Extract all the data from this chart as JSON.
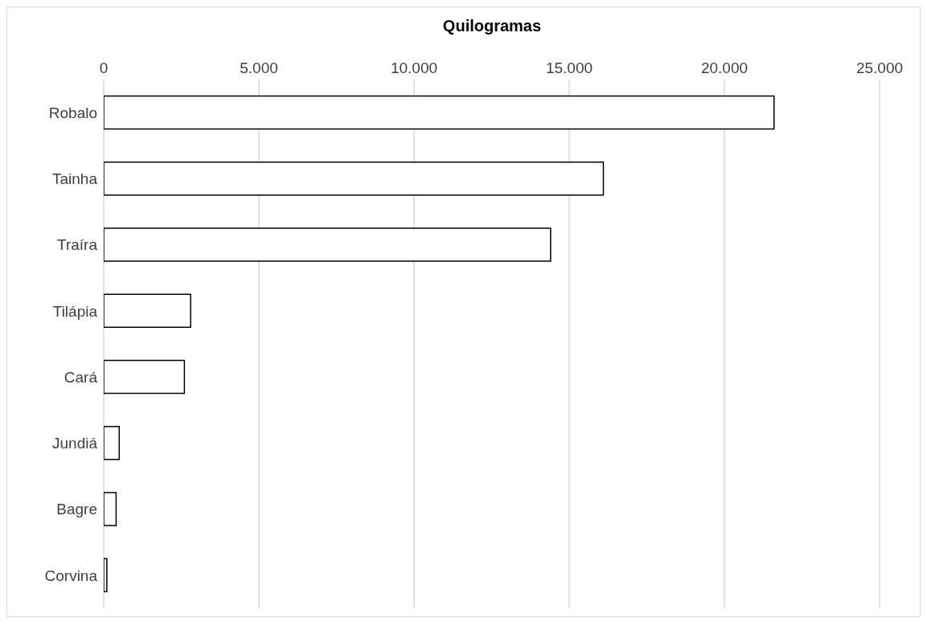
{
  "chart_data": {
    "type": "bar",
    "orientation": "horizontal",
    "xlabel": "Quilogramas",
    "categories": [
      "Robalo",
      "Tainha",
      "Traíra",
      "Tilápia",
      "Cará",
      "Jundiá",
      "Bagre",
      "Corvina"
    ],
    "values": [
      21600,
      16100,
      14400,
      2800,
      2600,
      500,
      400,
      100
    ],
    "color": "#ffffff",
    "xlim": [
      0,
      25000
    ],
    "xticks": [
      0,
      {
        "value": 5000,
        "label": "5.000"
      },
      {
        "value": 10000,
        "label": "10.000"
      },
      {
        "value": 15000,
        "label": "15.000"
      },
      {
        "value": 20000,
        "label": "20.000"
      },
      {
        "value": 25000,
        "label": "25.000"
      }
    ],
    "grid": "x"
  }
}
